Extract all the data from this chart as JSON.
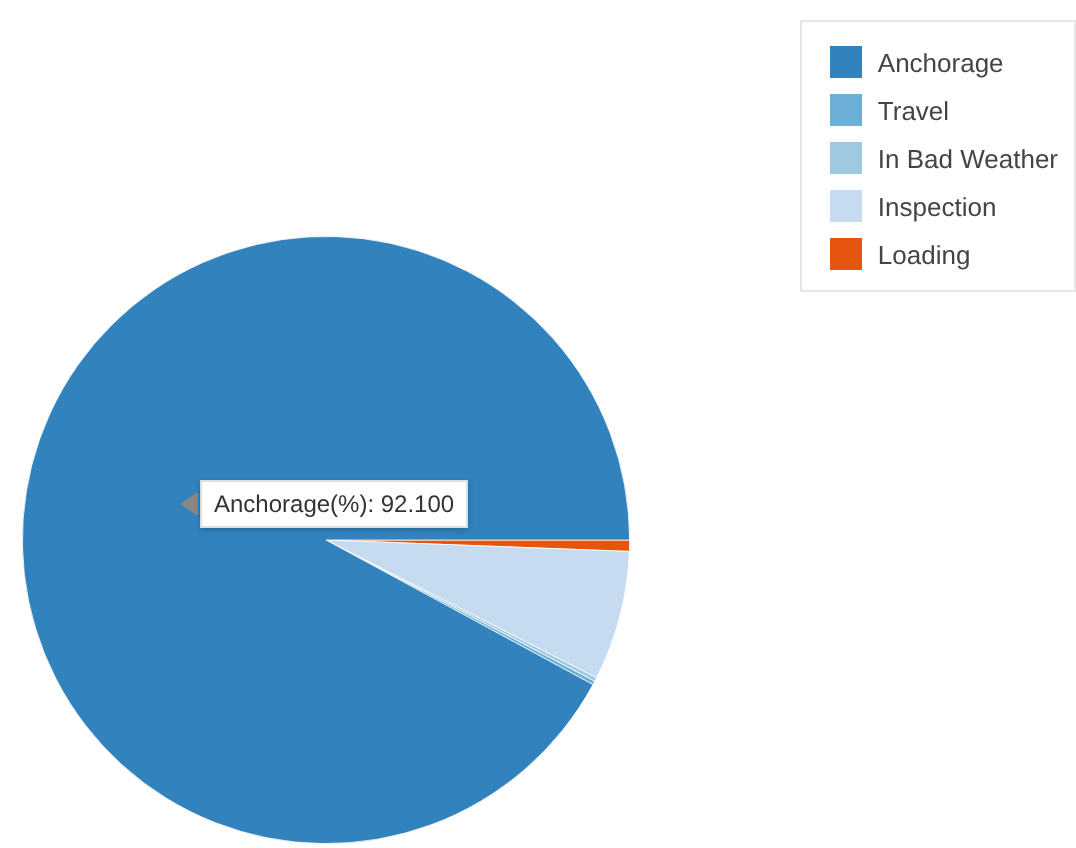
{
  "chart_data": {
    "type": "pie",
    "categories": [
      "Anchorage",
      "Travel",
      "In Bad Weather",
      "Inspection",
      "Loading"
    ],
    "values": [
      92.1,
      0.2,
      0.2,
      6.9,
      0.6
    ],
    "colors": [
      "#3182bd",
      "#6baed6",
      "#9ecae1",
      "#c6dbef",
      "#e6550d"
    ],
    "legend": "top right",
    "annotations": [
      "Anchorage(%): 92.100"
    ]
  }
}
